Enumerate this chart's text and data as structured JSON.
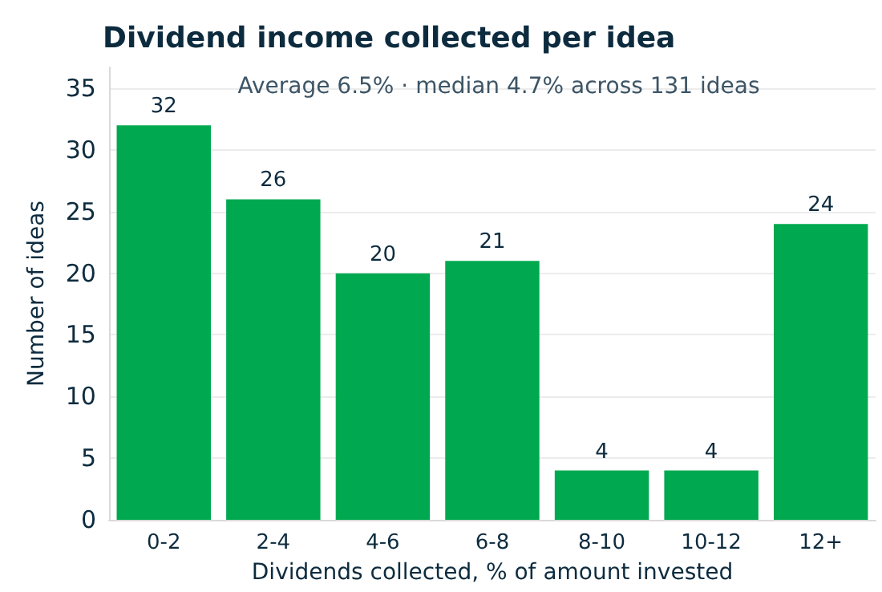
{
  "chart_data": {
    "type": "bar",
    "title": "Dividend income collected per idea",
    "subtitle": "Average 6.5% · median 4.7% across 131 ideas",
    "xlabel": "Dividends collected, % of amount invested",
    "ylabel": "Number of ideas",
    "categories": [
      "0-2",
      "2-4",
      "4-6",
      "6-8",
      "8-10",
      "10-12",
      "12+"
    ],
    "values": [
      32,
      26,
      20,
      21,
      4,
      4,
      24
    ],
    "color": "#00a94f",
    "ylim": [
      0,
      36.7
    ],
    "yticks": [
      0,
      5,
      10,
      15,
      20,
      25,
      30,
      35
    ],
    "grid": "y",
    "data_labels": true
  }
}
